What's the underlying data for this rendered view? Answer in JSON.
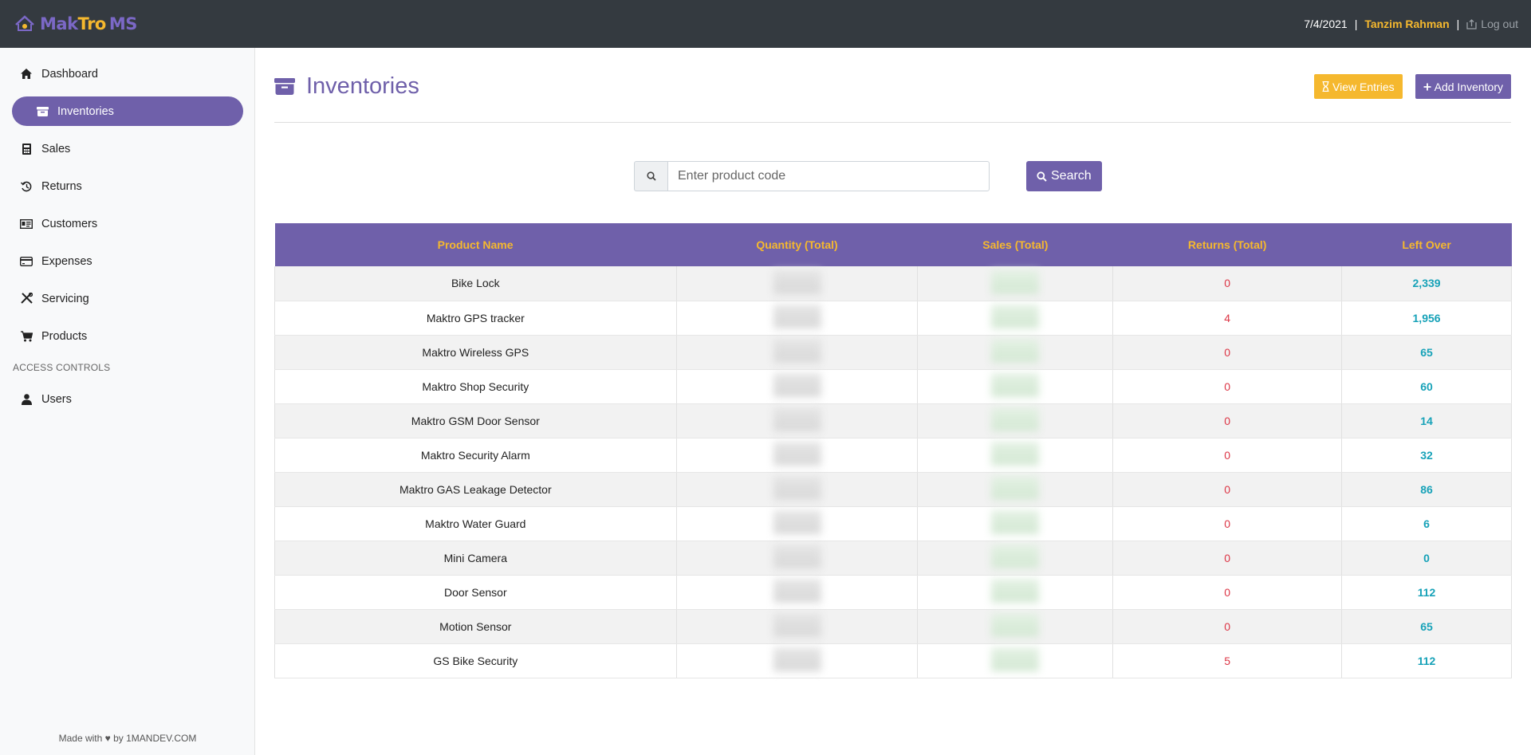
{
  "brand": {
    "part1": "Mak",
    "part2": "Tro",
    "part3": "MS"
  },
  "topbar": {
    "date": "7/4/2021",
    "separator": "|",
    "user": "Tanzim Rahman",
    "logout": "Log out"
  },
  "sidebar": {
    "items": [
      {
        "label": "Dashboard",
        "icon": "home-icon"
      },
      {
        "label": "Inventories",
        "icon": "archive-icon",
        "active": true
      },
      {
        "label": "Sales",
        "icon": "calculator-icon"
      },
      {
        "label": "Returns",
        "icon": "history-icon"
      },
      {
        "label": "Customers",
        "icon": "id-card-icon"
      },
      {
        "label": "Expenses",
        "icon": "credit-card-icon"
      },
      {
        "label": "Servicing",
        "icon": "tools-icon"
      },
      {
        "label": "Products",
        "icon": "cart-icon"
      }
    ],
    "heading": "ACCESS CONTROLS",
    "users_label": "Users",
    "footer": "Made with ♥ by 1MANDEV.COM"
  },
  "page": {
    "title": "Inventories",
    "view_entries": "View Entries",
    "add_inventory": "Add Inventory"
  },
  "search": {
    "placeholder": "Enter product code",
    "button": "Search"
  },
  "table": {
    "headers": [
      "Product Name",
      "Quantity (Total)",
      "Sales (Total)",
      "Returns (Total)",
      "Left Over"
    ],
    "rows": [
      {
        "name": "Bike Lock",
        "returns": "0",
        "left": "2,339"
      },
      {
        "name": "Maktro GPS tracker",
        "returns": "4",
        "left": "1,956"
      },
      {
        "name": "Maktro Wireless GPS",
        "returns": "0",
        "left": "65"
      },
      {
        "name": "Maktro Shop Security",
        "returns": "0",
        "left": "60"
      },
      {
        "name": "Maktro GSM Door Sensor",
        "returns": "0",
        "left": "14"
      },
      {
        "name": "Maktro Security Alarm",
        "returns": "0",
        "left": "32"
      },
      {
        "name": "Maktro GAS Leakage Detector",
        "returns": "0",
        "left": "86"
      },
      {
        "name": "Maktro Water Guard",
        "returns": "0",
        "left": "6"
      },
      {
        "name": "Mini Camera",
        "returns": "0",
        "left": "0"
      },
      {
        "name": "Door Sensor",
        "returns": "0",
        "left": "112"
      },
      {
        "name": "Motion Sensor",
        "returns": "0",
        "left": "65"
      },
      {
        "name": "GS Bike Security",
        "returns": "5",
        "left": "112"
      }
    ]
  },
  "colors": {
    "primary": "#6f60aa",
    "accent": "#f5b82e",
    "topbar": "#343a40",
    "danger": "#dc3545",
    "info": "#17a2b8"
  }
}
